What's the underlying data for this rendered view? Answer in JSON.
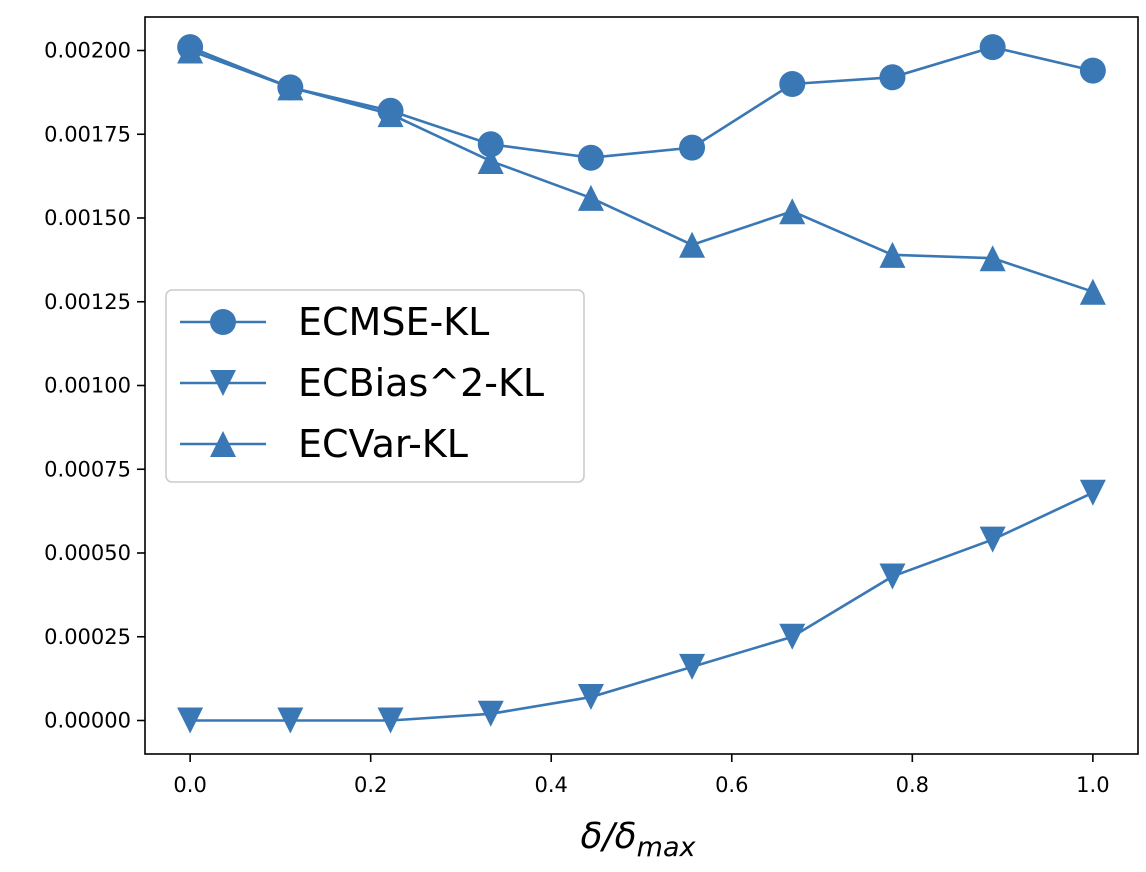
{
  "chart_data": {
    "type": "line",
    "title": "",
    "xlabel": "δ/δ",
    "xlabel_subscript": "max",
    "ylabel": "",
    "xlim": [
      -0.05,
      1.05
    ],
    "ylim": [
      -0.0001,
      0.0021
    ],
    "x_ticks": [
      0.0,
      0.2,
      0.4,
      0.6,
      0.8,
      1.0
    ],
    "x_tick_labels": [
      "0.0",
      "0.2",
      "0.4",
      "0.6",
      "0.8",
      "1.0"
    ],
    "y_ticks": [
      0.0,
      0.00025,
      0.0005,
      0.00075,
      0.001,
      0.00125,
      0.0015,
      0.00175,
      0.002
    ],
    "y_tick_labels": [
      "0.00000",
      "0.00025",
      "0.00050",
      "0.00075",
      "0.00100",
      "0.00125",
      "0.00150",
      "0.00175",
      "0.00200"
    ],
    "grid": false,
    "legend_position": "center-left",
    "color": "#3a78b5",
    "x": [
      0.0,
      0.111,
      0.222,
      0.333,
      0.444,
      0.556,
      0.667,
      0.778,
      0.889,
      1.0
    ],
    "series": [
      {
        "name": "ECMSE-KL",
        "marker": "circle",
        "values": [
          0.00201,
          0.00189,
          0.00182,
          0.00172,
          0.00168,
          0.00171,
          0.0019,
          0.00192,
          0.00201,
          0.00194
        ]
      },
      {
        "name": "ECBias^2-KL",
        "marker": "triangle-down",
        "values": [
          0.0,
          0.0,
          0.0,
          2e-05,
          7e-05,
          0.00016,
          0.00025,
          0.00043,
          0.00054,
          0.00068
        ]
      },
      {
        "name": "ECVar-KL",
        "marker": "triangle-up",
        "values": [
          0.002,
          0.00189,
          0.00181,
          0.00167,
          0.00156,
          0.00142,
          0.00152,
          0.00139,
          0.00138,
          0.00128
        ]
      }
    ]
  }
}
